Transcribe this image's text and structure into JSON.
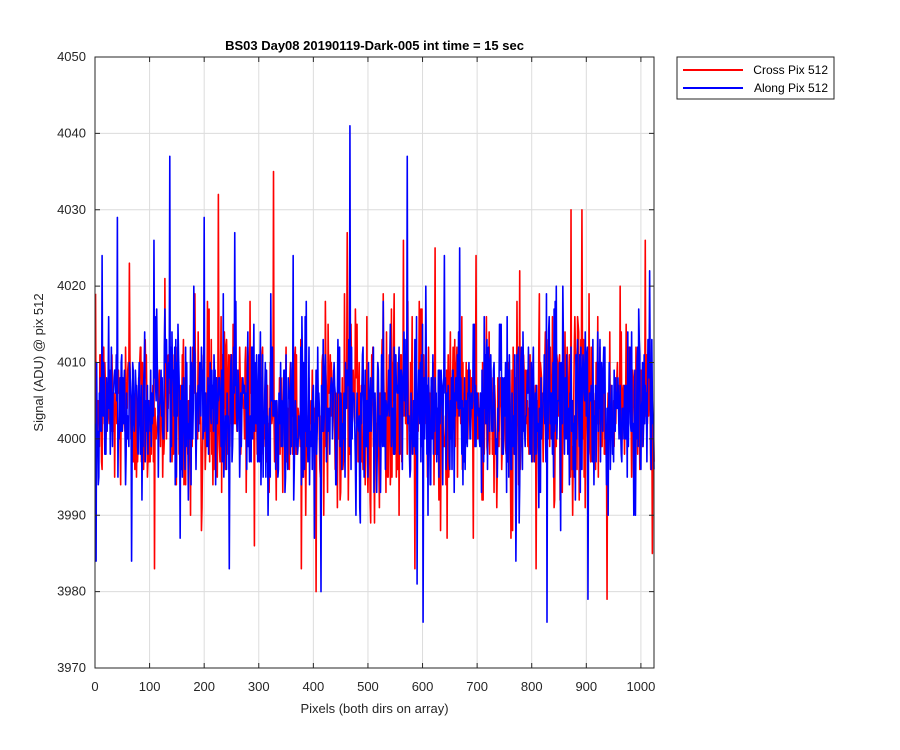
{
  "chart_data": {
    "type": "line",
    "title": "BS03 Day08 20190119-Dark-005 int time = 15 sec",
    "xlabel": "Pixels (both dirs on array)",
    "ylabel": "Signal (ADU) @ pix 512",
    "xlim": [
      0,
      1024
    ],
    "ylim": [
      3970,
      4050
    ],
    "xticks": [
      0,
      100,
      200,
      300,
      400,
      500,
      600,
      700,
      800,
      900,
      1000
    ],
    "yticks": [
      3970,
      3980,
      3990,
      4000,
      4010,
      4020,
      4030,
      4040,
      4050
    ],
    "grid": true,
    "legend_position": "outside top-right",
    "series": [
      {
        "name": "Cross Pix 512",
        "color": "#ff0000",
        "summary": {
          "mean": 4004,
          "min": 3979,
          "max": 4035
        },
        "peaks": [
          {
            "x": 63,
            "y": 4023
          },
          {
            "x": 109,
            "y": 3983
          },
          {
            "x": 128,
            "y": 4021
          },
          {
            "x": 163,
            "y": 3994
          },
          {
            "x": 183,
            "y": 4019
          },
          {
            "x": 226,
            "y": 4032
          },
          {
            "x": 248,
            "y": 4011
          },
          {
            "x": 284,
            "y": 4018
          },
          {
            "x": 292,
            "y": 3986
          },
          {
            "x": 327,
            "y": 4035
          },
          {
            "x": 348,
            "y": 3996
          },
          {
            "x": 378,
            "y": 3983
          },
          {
            "x": 405,
            "y": 3980
          },
          {
            "x": 422,
            "y": 4018
          },
          {
            "x": 462,
            "y": 4027
          },
          {
            "x": 528,
            "y": 4019
          },
          {
            "x": 565,
            "y": 4026
          },
          {
            "x": 586,
            "y": 3983
          },
          {
            "x": 623,
            "y": 4025
          },
          {
            "x": 645,
            "y": 3987
          },
          {
            "x": 698,
            "y": 4024
          },
          {
            "x": 736,
            "y": 3991
          },
          {
            "x": 778,
            "y": 4022
          },
          {
            "x": 808,
            "y": 3983
          },
          {
            "x": 838,
            "y": 4016
          },
          {
            "x": 872,
            "y": 4030
          },
          {
            "x": 892,
            "y": 4030
          },
          {
            "x": 905,
            "y": 4019
          },
          {
            "x": 938,
            "y": 3979
          },
          {
            "x": 962,
            "y": 4020
          },
          {
            "x": 1008,
            "y": 4026
          },
          {
            "x": 1021,
            "y": 3985
          }
        ]
      },
      {
        "name": "Along Pix 512",
        "color": "#0000ff",
        "summary": {
          "mean": 4004,
          "min": 3976,
          "max": 4041
        },
        "peaks": [
          {
            "x": 2,
            "y": 3984
          },
          {
            "x": 13,
            "y": 4024
          },
          {
            "x": 41,
            "y": 4029
          },
          {
            "x": 67,
            "y": 3984
          },
          {
            "x": 108,
            "y": 4026
          },
          {
            "x": 137,
            "y": 4037
          },
          {
            "x": 160,
            "y": 3995
          },
          {
            "x": 181,
            "y": 4020
          },
          {
            "x": 200,
            "y": 4029
          },
          {
            "x": 246,
            "y": 3983
          },
          {
            "x": 256,
            "y": 4027
          },
          {
            "x": 317,
            "y": 3990
          },
          {
            "x": 348,
            "y": 3993
          },
          {
            "x": 363,
            "y": 4024
          },
          {
            "x": 402,
            "y": 3987
          },
          {
            "x": 414,
            "y": 3980
          },
          {
            "x": 458,
            "y": 3995
          },
          {
            "x": 467,
            "y": 4041
          },
          {
            "x": 516,
            "y": 3993
          },
          {
            "x": 572,
            "y": 4037
          },
          {
            "x": 590,
            "y": 3981
          },
          {
            "x": 601,
            "y": 3976
          },
          {
            "x": 640,
            "y": 4024
          },
          {
            "x": 668,
            "y": 4025
          },
          {
            "x": 719,
            "y": 3996
          },
          {
            "x": 771,
            "y": 3984
          },
          {
            "x": 828,
            "y": 3976
          },
          {
            "x": 857,
            "y": 4020
          },
          {
            "x": 903,
            "y": 3979
          },
          {
            "x": 921,
            "y": 4014
          },
          {
            "x": 990,
            "y": 3990
          },
          {
            "x": 1016,
            "y": 4022
          }
        ]
      }
    ]
  }
}
